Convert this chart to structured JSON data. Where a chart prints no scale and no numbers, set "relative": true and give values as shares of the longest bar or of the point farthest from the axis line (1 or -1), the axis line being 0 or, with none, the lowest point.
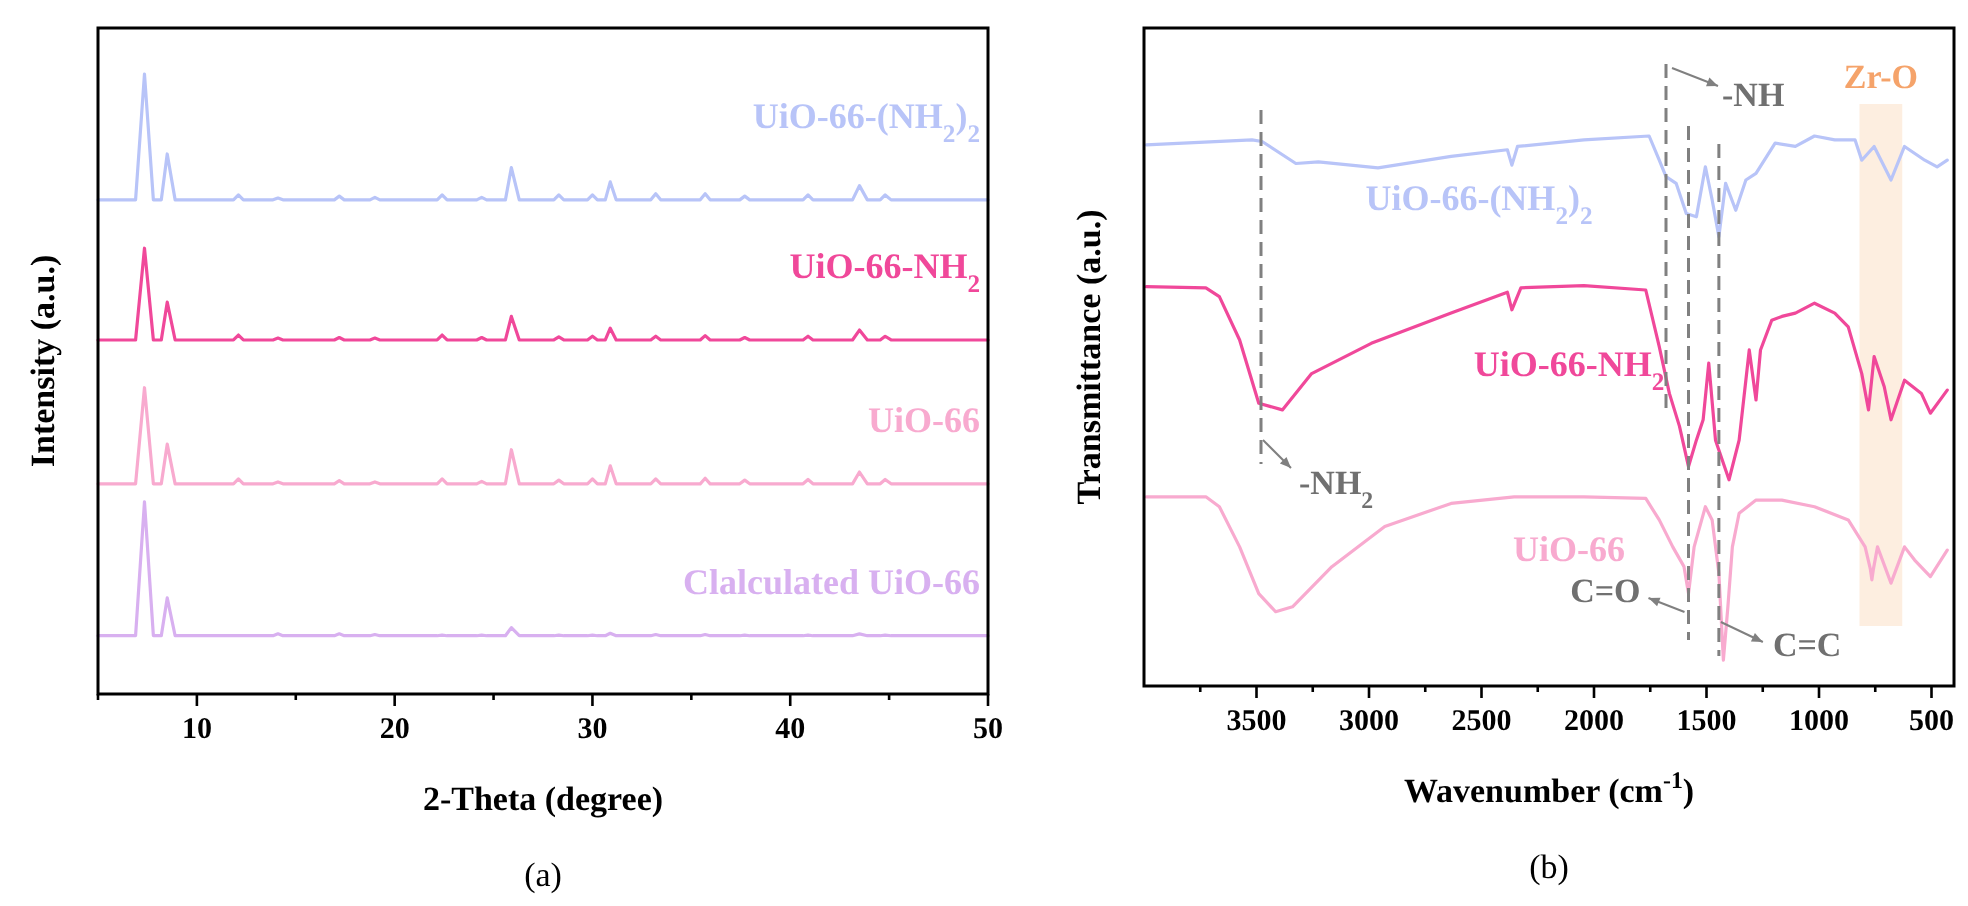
{
  "chart_data": [
    {
      "type": "line",
      "relative": true,
      "xlabel": "2-Theta (degree)",
      "ylabel": "Intensity (a.u.)",
      "legend": false,
      "tick_labels": "x",
      "annotations": [
        "(a)"
      ],
      "xlim": [
        5,
        50
      ],
      "xticks": [
        {
          "value": 5,
          "label": null
        },
        10,
        {
          "value": 15,
          "label": null
        },
        20,
        {
          "value": 25,
          "label": null
        },
        30,
        {
          "value": 35,
          "label": null
        },
        40,
        {
          "value": 45,
          "label": null
        },
        50
      ],
      "x": [
        5,
        6.9,
        7.35,
        7.8,
        8.2,
        8.5,
        8.9,
        11.85,
        12.1,
        12.35,
        13.85,
        14.1,
        14.35,
        16.95,
        17.2,
        17.45,
        18.75,
        19.0,
        19.25,
        22.15,
        22.4,
        22.65,
        24.15,
        24.4,
        24.65,
        25.6,
        25.9,
        26.3,
        28.05,
        28.3,
        28.55,
        29.75,
        30.0,
        30.25,
        30.65,
        30.9,
        31.2,
        32.95,
        33.2,
        33.45,
        35.45,
        35.7,
        35.95,
        37.45,
        37.7,
        37.95,
        40.65,
        40.9,
        41.15,
        43.15,
        43.5,
        43.9,
        44.55,
        44.8,
        45.1,
        50
      ],
      "series": [
        {
          "name": "UiO-66-(NH$_{2}$)$_{2}$",
          "color": "#b8c4f8",
          "values": [
            0.797,
            0.797,
            1.0,
            0.797,
            0.797,
            0.871,
            0.797,
            0.797,
            0.805,
            0.797,
            0.797,
            0.8,
            0.797,
            0.797,
            0.803,
            0.797,
            0.797,
            0.801,
            0.797,
            0.797,
            0.805,
            0.797,
            0.797,
            0.801,
            0.797,
            0.797,
            0.849,
            0.797,
            0.797,
            0.805,
            0.797,
            0.797,
            0.805,
            0.797,
            0.797,
            0.826,
            0.797,
            0.797,
            0.807,
            0.797,
            0.797,
            0.807,
            0.797,
            0.797,
            0.803,
            0.797,
            0.797,
            0.805,
            0.797,
            0.797,
            0.82,
            0.797,
            0.797,
            0.805,
            0.797,
            0.797
          ]
        },
        {
          "name": "UiO-66-NH$_{2}$",
          "color": "#f0489a",
          "values": [
            0.571,
            0.571,
            0.719,
            0.571,
            0.571,
            0.632,
            0.571,
            0.571,
            0.579,
            0.571,
            0.571,
            0.574,
            0.571,
            0.571,
            0.575,
            0.571,
            0.571,
            0.574,
            0.571,
            0.571,
            0.579,
            0.571,
            0.571,
            0.575,
            0.571,
            0.571,
            0.609,
            0.571,
            0.571,
            0.576,
            0.571,
            0.571,
            0.577,
            0.571,
            0.571,
            0.59,
            0.571,
            0.571,
            0.577,
            0.571,
            0.571,
            0.578,
            0.571,
            0.571,
            0.575,
            0.571,
            0.571,
            0.577,
            0.571,
            0.571,
            0.587,
            0.571,
            0.571,
            0.577,
            0.571,
            0.571
          ]
        },
        {
          "name": "UiO-66",
          "color": "#f8aacf",
          "values": [
            0.339,
            0.339,
            0.494,
            0.339,
            0.339,
            0.403,
            0.339,
            0.339,
            0.347,
            0.339,
            0.339,
            0.342,
            0.339,
            0.339,
            0.344,
            0.339,
            0.339,
            0.342,
            0.339,
            0.339,
            0.347,
            0.339,
            0.339,
            0.343,
            0.339,
            0.339,
            0.394,
            0.339,
            0.339,
            0.345,
            0.339,
            0.339,
            0.347,
            0.339,
            0.339,
            0.368,
            0.339,
            0.339,
            0.347,
            0.339,
            0.339,
            0.348,
            0.339,
            0.339,
            0.345,
            0.339,
            0.339,
            0.346,
            0.339,
            0.339,
            0.358,
            0.339,
            0.339,
            0.346,
            0.339,
            0.339
          ]
        },
        {
          "name": "Clalculated UiO-66",
          "color": "#d8b0f0",
          "values": [
            0.094,
            0.094,
            0.31,
            0.094,
            0.094,
            0.155,
            0.094,
            0.094,
            0.094,
            0.094,
            0.094,
            0.097,
            0.094,
            0.094,
            0.097,
            0.094,
            0.094,
            0.096,
            0.094,
            0.094,
            0.095,
            0.094,
            0.094,
            0.095,
            0.094,
            0.094,
            0.107,
            0.094,
            0.094,
            0.095,
            0.094,
            0.094,
            0.095,
            0.094,
            0.094,
            0.098,
            0.094,
            0.094,
            0.096,
            0.094,
            0.094,
            0.096,
            0.094,
            0.094,
            0.095,
            0.094,
            0.094,
            0.095,
            0.094,
            0.094,
            0.097,
            0.094,
            0.094,
            0.095,
            0.094,
            0.094
          ]
        }
      ]
    },
    {
      "type": "line",
      "relative": true,
      "xlabel": "Wavenumber (cm$^{-1}$)",
      "ylabel": "Transmittance (a.u.)",
      "legend": false,
      "tick_labels": "x",
      "annotations": [
        "(b)"
      ],
      "xlim": [
        4000,
        400
      ],
      "xticks": [
        {
          "value": 3750,
          "label": null
        },
        3500,
        {
          "value": 3250,
          "label": null
        },
        3000,
        {
          "value": 2750,
          "label": null
        },
        2500,
        {
          "value": 2250,
          "label": null
        },
        2000,
        {
          "value": 1750,
          "label": null
        },
        1500,
        {
          "value": 1250,
          "label": null
        },
        1000,
        {
          "value": 750,
          "label": null
        },
        500
      ],
      "ref_lines": [
        {
          "axis": "x",
          "value": 3480,
          "label": "-NH$_{2}$",
          "color": "#808080",
          "line_style": "dashed"
        },
        {
          "axis": "x",
          "value": 1680,
          "label": "-NH",
          "color": "#808080",
          "line_style": "dashed"
        },
        {
          "axis": "x",
          "value": 1580,
          "label": "C=O",
          "color": "#808080",
          "line_style": "dashed"
        },
        {
          "axis": "x",
          "value": 1445,
          "label": "C=C",
          "color": "#808080",
          "line_style": "dashed"
        }
      ],
      "bands": [
        {
          "axis": "x",
          "from": 820,
          "to": 630,
          "label": "Zr-O",
          "color": "#fbe3cc"
        }
      ],
      "series": [
        {
          "name": "UiO-66-(NH$_{2}$)$_{2}$",
          "color": "#b8c4f8",
          "x": [
            3990,
            3520,
            3475,
            3325,
            3225,
            2960,
            2635,
            2385,
            2365,
            2340,
            2045,
            1755,
            1710,
            1680,
            1635,
            1590,
            1545,
            1505,
            1475,
            1445,
            1415,
            1370,
            1325,
            1280,
            1195,
            1105,
            1020,
            930,
            840,
            810,
            755,
            680,
            620,
            530,
            475,
            430
          ],
          "values": [
            0.984,
            0.993,
            0.99,
            0.95,
            0.953,
            0.942,
            0.963,
            0.975,
            0.947,
            0.981,
            0.993,
            1.0,
            0.956,
            0.926,
            0.914,
            0.859,
            0.853,
            0.944,
            0.884,
            0.817,
            0.914,
            0.865,
            0.92,
            0.932,
            0.987,
            0.981,
            1.0,
            0.993,
            0.993,
            0.956,
            0.981,
            0.92,
            0.981,
            0.956,
            0.944,
            0.956
          ]
        },
        {
          "name": "UiO-66-NH$_{2}$",
          "color": "#f0489a",
          "x": [
            3990,
            3725,
            3665,
            3575,
            3490,
            3385,
            3255,
            2990,
            2635,
            2385,
            2365,
            2325,
            2045,
            1770,
            1710,
            1665,
            1620,
            1580,
            1545,
            1515,
            1490,
            1460,
            1430,
            1400,
            1355,
            1310,
            1280,
            1260,
            1210,
            1165,
            1105,
            1020,
            930,
            870,
            810,
            780,
            755,
            710,
            680,
            620,
            545,
            505,
            430
          ],
          "values": [
            0.726,
            0.724,
            0.708,
            0.629,
            0.514,
            0.502,
            0.568,
            0.623,
            0.678,
            0.716,
            0.684,
            0.724,
            0.728,
            0.72,
            0.617,
            0.532,
            0.472,
            0.399,
            0.447,
            0.484,
            0.587,
            0.447,
            0.411,
            0.375,
            0.447,
            0.611,
            0.52,
            0.611,
            0.665,
            0.672,
            0.678,
            0.696,
            0.678,
            0.653,
            0.568,
            0.502,
            0.599,
            0.544,
            0.484,
            0.556,
            0.532,
            0.496,
            0.538
          ]
        },
        {
          "name": "UiO-66",
          "color": "#f8aacf",
          "x": [
            3990,
            3725,
            3665,
            3575,
            3490,
            3415,
            3340,
            3165,
            2930,
            2635,
            2355,
            2045,
            1770,
            1710,
            1650,
            1600,
            1580,
            1555,
            1505,
            1475,
            1445,
            1425,
            1405,
            1385,
            1355,
            1280,
            1165,
            1020,
            870,
            795,
            772,
            765,
            758,
            740,
            680,
            620,
            575,
            505,
            430
          ],
          "values": [
            0.344,
            0.344,
            0.326,
            0.253,
            0.168,
            0.135,
            0.144,
            0.217,
            0.29,
            0.332,
            0.344,
            0.344,
            0.341,
            0.302,
            0.253,
            0.217,
            0.168,
            0.253,
            0.326,
            0.302,
            0.205,
            0.047,
            0.144,
            0.253,
            0.314,
            0.338,
            0.338,
            0.326,
            0.302,
            0.253,
            0.213,
            0.193,
            0.213,
            0.253,
            0.187,
            0.253,
            0.229,
            0.199,
            0.247
          ]
        }
      ]
    }
  ]
}
